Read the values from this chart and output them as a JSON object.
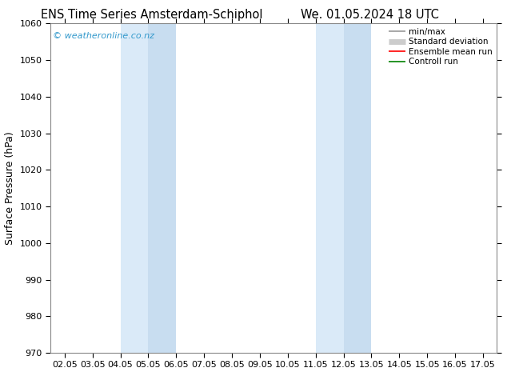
{
  "title_left": "ENS Time Series Amsterdam-Schiphol",
  "title_right": "We. 01.05.2024 18 UTC",
  "ylabel": "Surface Pressure (hPa)",
  "ylim": [
    970,
    1060
  ],
  "yticks": [
    970,
    980,
    990,
    1000,
    1010,
    1020,
    1030,
    1040,
    1050,
    1060
  ],
  "xtick_labels": [
    "02.05",
    "03.05",
    "04.05",
    "05.05",
    "06.05",
    "07.05",
    "08.05",
    "09.05",
    "10.05",
    "11.05",
    "12.05",
    "13.05",
    "14.05",
    "15.05",
    "16.05",
    "17.05"
  ],
  "xtick_positions": [
    0,
    1,
    2,
    3,
    4,
    5,
    6,
    7,
    8,
    9,
    10,
    11,
    12,
    13,
    14,
    15
  ],
  "xlim": [
    -0.5,
    15.5
  ],
  "shaded_pairs": [
    {
      "x_start": 2.0,
      "x_end": 3.0,
      "color": "#daeaf8"
    },
    {
      "x_start": 3.0,
      "x_end": 4.0,
      "color": "#c8ddf0"
    },
    {
      "x_start": 9.0,
      "x_end": 10.0,
      "color": "#daeaf8"
    },
    {
      "x_start": 10.0,
      "x_end": 11.0,
      "color": "#c8ddf0"
    }
  ],
  "watermark": "© weatheronline.co.nz",
  "watermark_color": "#3399cc",
  "legend_items": [
    {
      "label": "min/max",
      "color": "#999999",
      "lw": 1.2
    },
    {
      "label": "Standard deviation",
      "color": "#cccccc",
      "lw": 5
    },
    {
      "label": "Ensemble mean run",
      "color": "#ff0000",
      "lw": 1.2
    },
    {
      "label": "Controll run",
      "color": "#008000",
      "lw": 1.2
    }
  ],
  "bg_color": "#ffffff",
  "title_fontsize": 10.5,
  "ylabel_fontsize": 9,
  "tick_fontsize": 8,
  "watermark_fontsize": 8,
  "legend_fontsize": 7.5
}
